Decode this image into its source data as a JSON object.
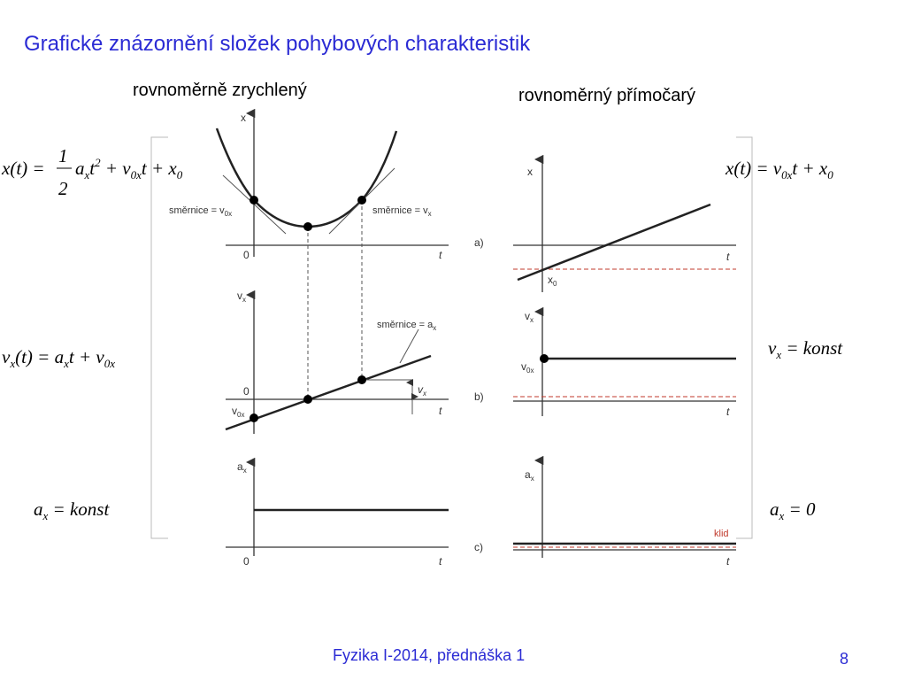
{
  "header": {
    "title": "Grafické znázornění složek pohybových charakteristik"
  },
  "columns": [
    {
      "heading": "rovnoměrně zrychlený"
    },
    {
      "heading": "rovnoměrný přímočarý"
    }
  ],
  "formulas": {
    "left": [
      [
        "x(t) = ",
        "1",
        "2",
        "a",
        "x",
        "t",
        "2",
        " + v",
        "0x",
        "t + x",
        "0"
      ],
      [
        "v",
        "x",
        "(t) = a",
        "x",
        "t + v",
        "0x"
      ],
      [
        "a",
        "x",
        " = konst"
      ]
    ],
    "right": [
      [
        "x(t) = v",
        "0x",
        "t + x",
        "0"
      ],
      [
        "v",
        "x",
        " = konst"
      ],
      [
        "a",
        "x",
        " = 0"
      ]
    ]
  },
  "left_graph": {
    "top": [
      "x",
      "0",
      "t",
      "směrnice = v",
      "0x",
      "směrnice = v",
      "x"
    ],
    "middle": [
      "v",
      "x",
      "0",
      "t",
      "v",
      "0x",
      "směrnice = a",
      "x",
      "v",
      "x"
    ],
    "bottom": [
      "a",
      "x",
      "0",
      "t"
    ]
  },
  "right_graph": {
    "top": [
      "x",
      "t",
      "x",
      "0",
      "a)"
    ],
    "middle": [
      "v",
      "x",
      "v",
      "0x",
      "t",
      "b)"
    ],
    "bottom": [
      "a",
      "x",
      "t",
      "klid",
      "c)"
    ]
  },
  "footer": {
    "text": "Fyzika I-2014, přednáška 1",
    "page": "8"
  }
}
